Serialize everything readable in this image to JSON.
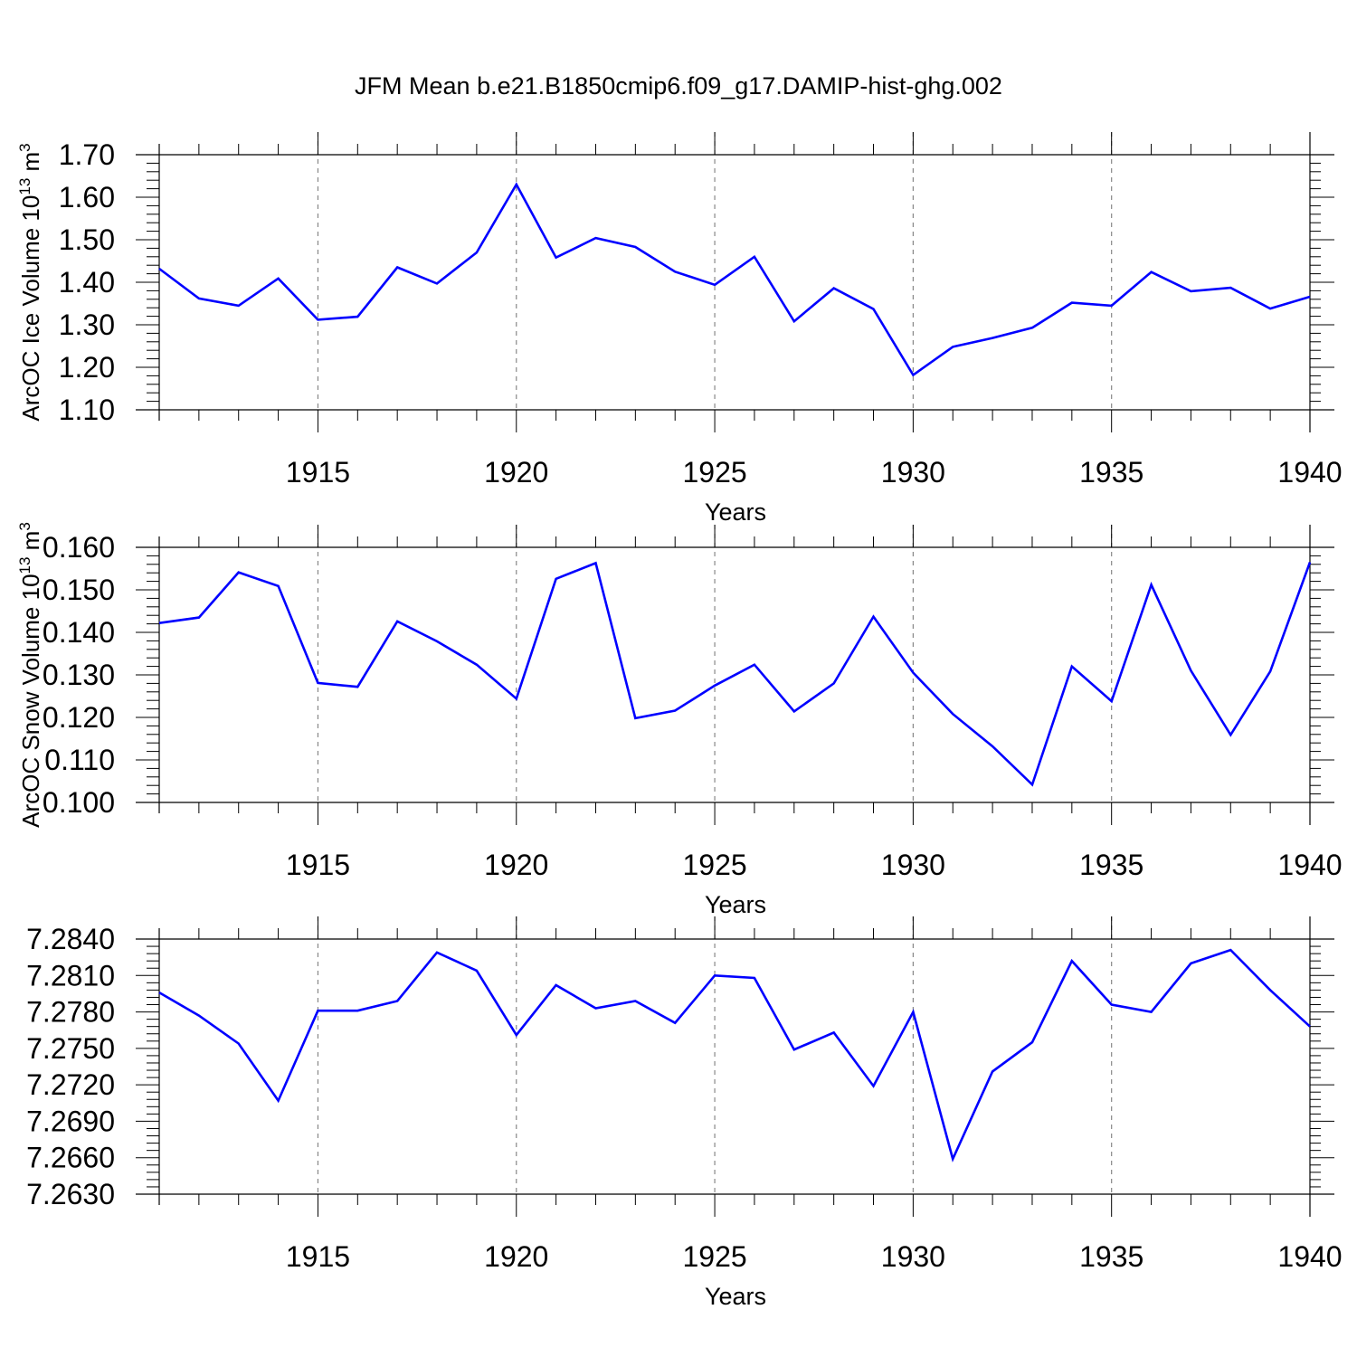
{
  "title": "JFM Mean b.e21.B1850cmip6.f09_g17.DAMIP-hist-ghg.002",
  "line_color": "#0000ff",
  "chart_data": [
    {
      "type": "line",
      "ylabel": "ArcOC Ice Volume 10",
      "ylabel_exp": "13",
      "ylabel_unit": " m",
      "ylabel_unit_exp": "3",
      "xlabel": "Years",
      "xlim": [
        1911,
        1940
      ],
      "ylim": [
        1.1,
        1.7
      ],
      "yticks": [
        "1.10",
        "1.20",
        "1.30",
        "1.40",
        "1.50",
        "1.60",
        "1.70"
      ],
      "xticks": [
        "1915",
        "1920",
        "1925",
        "1930",
        "1935",
        "1940"
      ],
      "x": [
        1911,
        1912,
        1913,
        1914,
        1915,
        1916,
        1917,
        1918,
        1919,
        1920,
        1921,
        1922,
        1923,
        1924,
        1925,
        1926,
        1927,
        1928,
        1929,
        1930,
        1931,
        1932,
        1933,
        1934,
        1935,
        1936,
        1937,
        1938,
        1939,
        1940
      ],
      "values": [
        1.432,
        1.362,
        1.345,
        1.409,
        1.312,
        1.319,
        1.435,
        1.397,
        1.47,
        1.63,
        1.458,
        1.504,
        1.483,
        1.425,
        1.394,
        1.46,
        1.308,
        1.386,
        1.337,
        1.182,
        1.248,
        1.269,
        1.293,
        1.352,
        1.345,
        1.424,
        1.379,
        1.387,
        1.338,
        1.366
      ]
    },
    {
      "type": "line",
      "ylabel": "ArcOC Snow Volume 10",
      "ylabel_exp": "13",
      "ylabel_unit": " m",
      "ylabel_unit_exp": "3",
      "xlabel": "Years",
      "xlim": [
        1911,
        1940
      ],
      "ylim": [
        0.1,
        0.16
      ],
      "yticks": [
        "0.100",
        "0.110",
        "0.120",
        "0.130",
        "0.140",
        "0.150",
        "0.160"
      ],
      "xticks": [
        "1915",
        "1920",
        "1925",
        "1930",
        "1935",
        "1940"
      ],
      "x": [
        1911,
        1912,
        1913,
        1914,
        1915,
        1916,
        1917,
        1918,
        1919,
        1920,
        1921,
        1922,
        1923,
        1924,
        1925,
        1926,
        1927,
        1928,
        1929,
        1930,
        1931,
        1932,
        1933,
        1934,
        1935,
        1936,
        1937,
        1938,
        1939,
        1940
      ],
      "values": [
        0.1422,
        0.1435,
        0.1541,
        0.1509,
        0.1281,
        0.1272,
        0.1426,
        0.1379,
        0.1324,
        0.1244,
        0.1526,
        0.1563,
        0.1198,
        0.1216,
        0.1275,
        0.1324,
        0.1214,
        0.128,
        0.1437,
        0.1305,
        0.1208,
        0.1132,
        0.1042,
        0.132,
        0.1238,
        0.1512,
        0.131,
        0.1159,
        0.1308,
        0.1565
      ]
    },
    {
      "type": "line",
      "ylabel": "",
      "xlabel": "Years",
      "xlim": [
        1911,
        1940
      ],
      "ylim": [
        7.263,
        7.284
      ],
      "yticks": [
        "7.2630",
        "7.2660",
        "7.2690",
        "7.2720",
        "7.2750",
        "7.2780",
        "7.2810",
        "7.2840"
      ],
      "xticks": [
        "1915",
        "1920",
        "1925",
        "1930",
        "1935",
        "1940"
      ],
      "x": [
        1911,
        1912,
        1913,
        1914,
        1915,
        1916,
        1917,
        1918,
        1919,
        1920,
        1921,
        1922,
        1923,
        1924,
        1925,
        1926,
        1927,
        1928,
        1929,
        1930,
        1931,
        1932,
        1933,
        1934,
        1935,
        1936,
        1937,
        1938,
        1939,
        1940
      ],
      "values": [
        7.2796,
        7.2777,
        7.2754,
        7.2707,
        7.2781,
        7.2781,
        7.2789,
        7.2829,
        7.2814,
        7.2761,
        7.2802,
        7.2783,
        7.2789,
        7.2771,
        7.281,
        7.2808,
        7.2749,
        7.2763,
        7.2719,
        7.278,
        7.2659,
        7.2731,
        7.2755,
        7.2822,
        7.2786,
        7.278,
        7.282,
        7.2831,
        7.2798,
        7.2768
      ]
    }
  ]
}
